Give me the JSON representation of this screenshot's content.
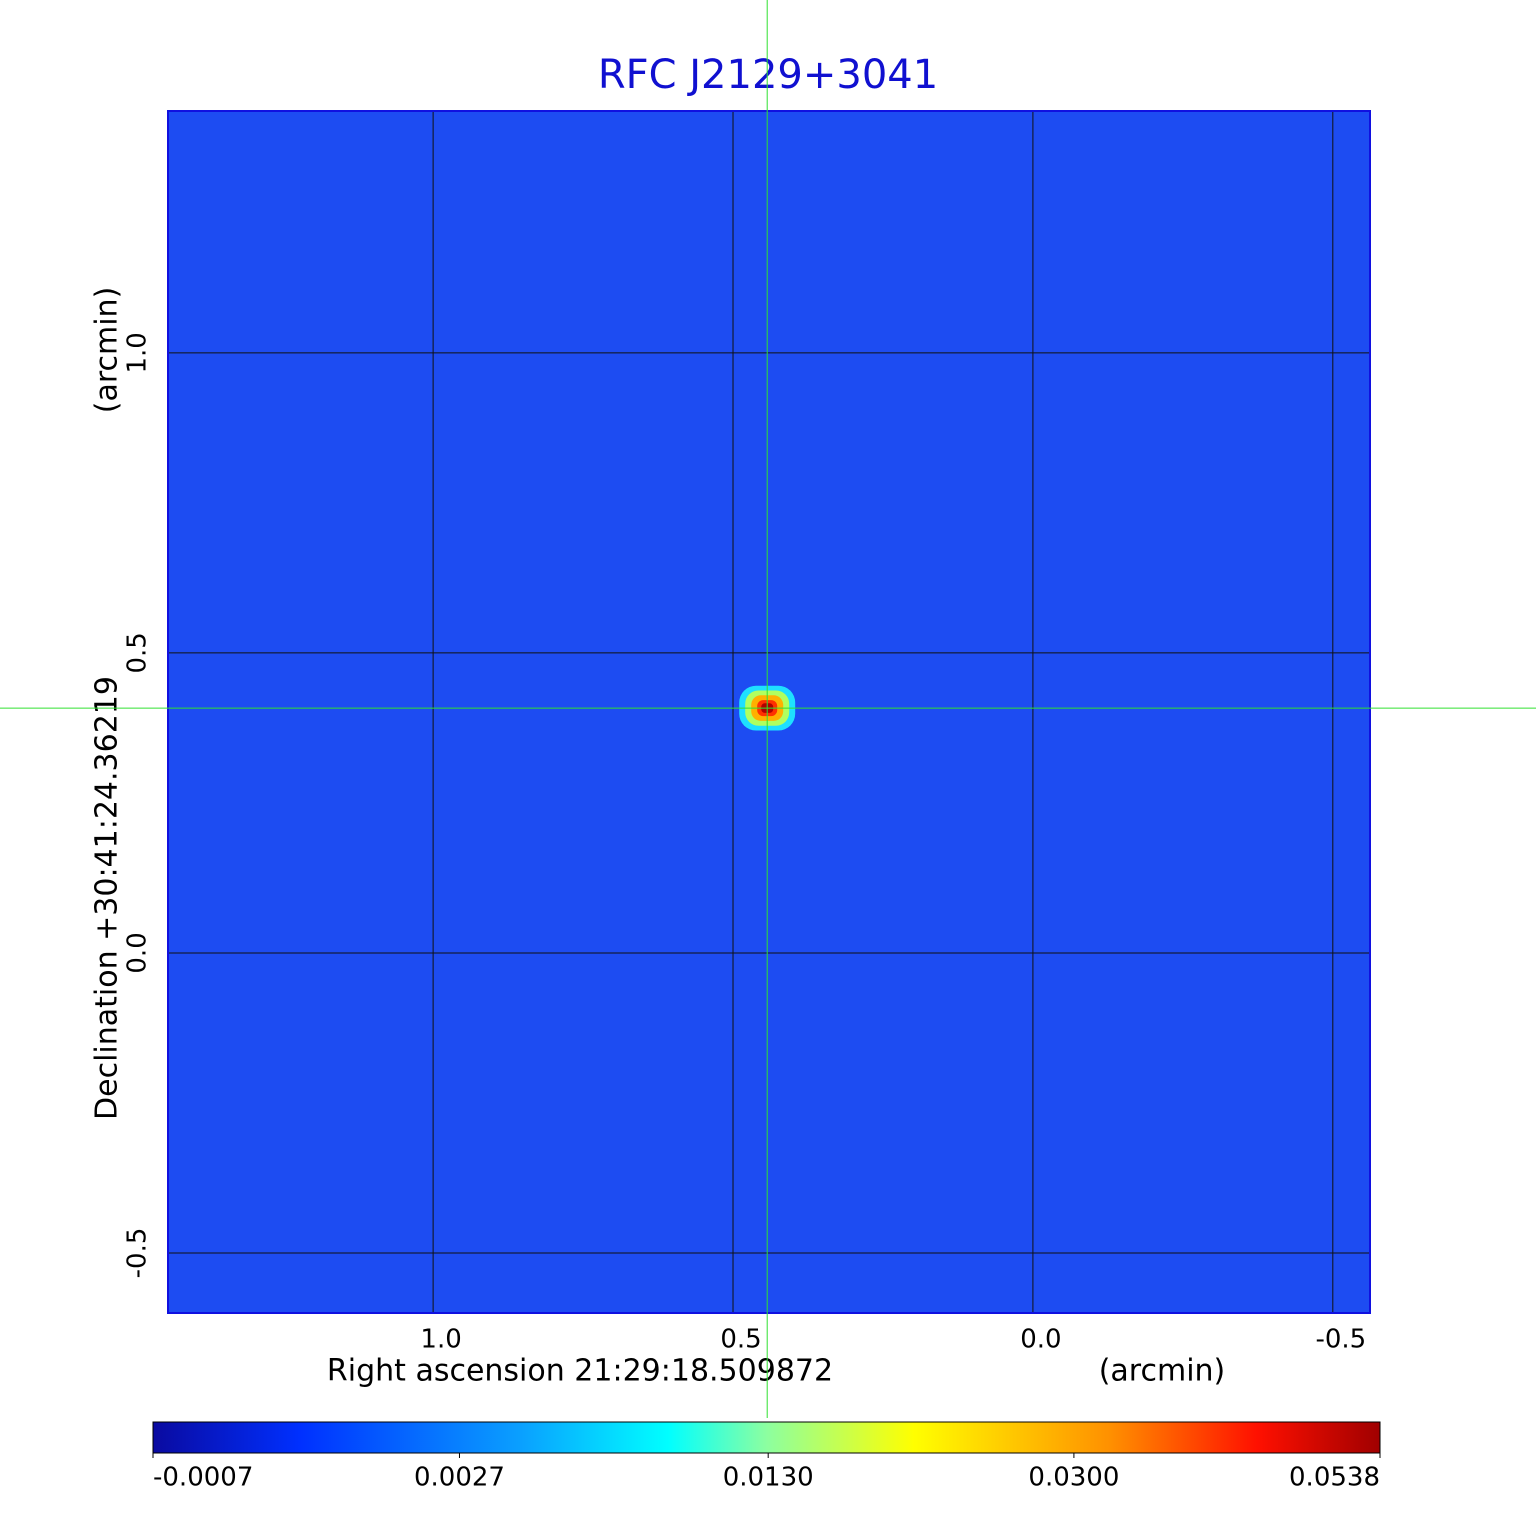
{
  "chart_data": {
    "type": "image",
    "title": "RFC J2129+3041",
    "xlabel": "Right ascension  21:29:18.509872",
    "xunit": "(arcmin)",
    "ylabel": "Declination  +30:41:24.36219",
    "yunit": "(arcmin)",
    "xlim": [
      1.442,
      -0.562
    ],
    "ylim": [
      -0.6,
      1.403
    ],
    "xticks": [
      {
        "value": 1,
        "label": "1.0"
      },
      0.5,
      {
        "value": 0,
        "label": "0.0"
      },
      -0.5
    ],
    "yticks": [
      -0.5,
      {
        "value": 0,
        "label": "0.0"
      },
      0.5,
      {
        "value": 1,
        "label": "1.0"
      }
    ],
    "grid": true,
    "background_color": "#1d4cf2",
    "source": {
      "x": 0.443,
      "y": 0.408,
      "peak": 0.0538
    },
    "colorbar_scale": "sqrt",
    "colorbar_lim": [
      -0.0007,
      0.0538
    ],
    "colorbar_ticks": [
      -0.0007,
      0.0027,
      {
        "value": 0.013,
        "label": "0.0130"
      },
      {
        "value": 0.03,
        "label": "0.0300"
      },
      0.0538
    ]
  }
}
